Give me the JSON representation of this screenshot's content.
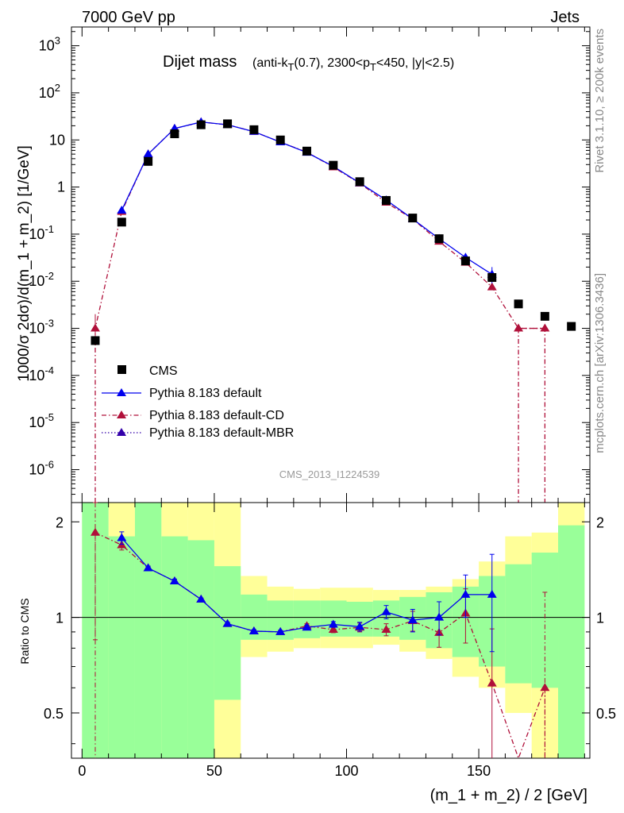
{
  "header": {
    "left": "7000 GeV pp",
    "right": "Jets"
  },
  "side_labels": {
    "rivet": "Rivet 3.1.10, ≥ 200k events",
    "mcplots": "mcplots.cern.ch [arXiv:1306.3436]"
  },
  "chart_data": [
    {
      "type": "scatter",
      "title": "Dijet mass",
      "title_detail_parts": [
        "(anti-k",
        "T",
        "(0.7), 2300<p",
        "T",
        "<450, |y|<2.5)"
      ],
      "watermark": "CMS_2013_I1224539",
      "ylabel": "1000/σ 2dσ)/d(m_1 + m_2) [1/GeV]",
      "yscale": "log",
      "ylim": [
        2e-07,
        2500
      ],
      "xlim": [
        -4,
        192
      ],
      "ytick_labels": [
        {
          "b": "10",
          "e": "-6"
        },
        {
          "b": "10",
          "e": "-5"
        },
        {
          "b": "10",
          "e": "-4"
        },
        {
          "b": "10",
          "e": "-3"
        },
        {
          "b": "10",
          "e": "-2"
        },
        {
          "b": "10",
          "e": "-1"
        },
        {
          "b": "1",
          "e": ""
        },
        {
          "b": "10",
          "e": ""
        },
        {
          "b": "10",
          "e": "2"
        },
        {
          "b": "10",
          "e": "3"
        }
      ],
      "legend_position": "lower-left",
      "legend": [
        "CMS",
        "Pythia 8.183 default",
        "Pythia 8.183 default-CD",
        "Pythia 8.183 default-MBR"
      ],
      "series": [
        {
          "name": "CMS",
          "marker": "square",
          "color": "#000000",
          "x": [
            5,
            15,
            25,
            35,
            45,
            55,
            65,
            75,
            85,
            95,
            105,
            115,
            125,
            135,
            145,
            155,
            165,
            175,
            185
          ],
          "y": [
            0.00055,
            0.18,
            3.5,
            13.5,
            21,
            22,
            16.5,
            10,
            5.8,
            2.9,
            1.3,
            0.52,
            0.22,
            0.08,
            0.027,
            0.012,
            0.0033,
            0.0018,
            0.0011
          ]
        },
        {
          "name": "Pythia 8.183 default",
          "marker": "triangle",
          "color": "#0000ee",
          "linestyle": "solid",
          "x": [
            15,
            25,
            35,
            45,
            55,
            65,
            75,
            85,
            95,
            105,
            115,
            125,
            135,
            145,
            155
          ],
          "y": [
            0.32,
            5.0,
            17.5,
            24,
            21,
            15,
            9.0,
            5.4,
            2.75,
            1.22,
            0.53,
            0.21,
            0.08,
            0.032,
            0.014
          ]
        },
        {
          "name": "Pythia 8.183 default-CD",
          "marker": "triangle",
          "color": "#b0103a",
          "linestyle": "dashdot",
          "x": [
            5,
            15,
            25,
            35,
            45,
            55,
            65,
            75,
            85,
            95,
            105,
            115,
            125,
            135,
            145,
            155,
            165,
            175
          ],
          "y": [
            0.001,
            0.3,
            5.0,
            17.5,
            24,
            21,
            15,
            9.0,
            5.5,
            2.65,
            1.2,
            0.47,
            0.21,
            0.07,
            0.025,
            0.0075,
            0.001,
            0.001
          ]
        },
        {
          "name": "Pythia 8.183 default-MBR",
          "marker": "triangle",
          "color": "#3300aa",
          "linestyle": "dotted",
          "x": [],
          "y": []
        }
      ]
    },
    {
      "type": "scatter",
      "ylabel": "Ratio to CMS",
      "xlabel": "(m_1 + m_2) / 2 [GeV]",
      "ylim": [
        0.36,
        2.3
      ],
      "xlim": [
        -4,
        192
      ],
      "xticks": [
        0,
        50,
        100,
        150
      ],
      "xtick_labels": [
        "0",
        "50",
        "100",
        "150"
      ],
      "ytick_labels": [
        "0.5",
        "1",
        "2"
      ],
      "bins": [
        0,
        10,
        20,
        30,
        40,
        50,
        60,
        70,
        80,
        90,
        100,
        110,
        120,
        130,
        140,
        150,
        160,
        170,
        180,
        190
      ],
      "band_green": [
        [
          0.2,
          2.5
        ],
        [
          0.3,
          1.8
        ],
        [
          0.2,
          2.5
        ],
        [
          0.3,
          1.8
        ],
        [
          0.35,
          1.75
        ],
        [
          0.55,
          1.45
        ],
        [
          0.85,
          1.18
        ],
        [
          0.85,
          1.13
        ],
        [
          0.86,
          1.13
        ],
        [
          0.87,
          1.13
        ],
        [
          0.87,
          1.12
        ],
        [
          0.87,
          1.13
        ],
        [
          0.85,
          1.16
        ],
        [
          0.8,
          1.2
        ],
        [
          0.75,
          1.25
        ],
        [
          0.7,
          1.35
        ],
        [
          0.62,
          1.47
        ],
        [
          0.6,
          1.6
        ],
        [
          0.2,
          1.95
        ]
      ],
      "band_yellow": [
        [
          0.2,
          2.5
        ],
        [
          0.2,
          2.5
        ],
        [
          0.2,
          2.5
        ],
        [
          0.2,
          2.5
        ],
        [
          0.2,
          2.5
        ],
        [
          0.2,
          2.5
        ],
        [
          0.75,
          1.35
        ],
        [
          0.78,
          1.25
        ],
        [
          0.8,
          1.23
        ],
        [
          0.8,
          1.24
        ],
        [
          0.8,
          1.24
        ],
        [
          0.82,
          1.22
        ],
        [
          0.78,
          1.22
        ],
        [
          0.74,
          1.25
        ],
        [
          0.65,
          1.32
        ],
        [
          0.6,
          1.5
        ],
        [
          0.5,
          1.8
        ],
        [
          0.2,
          1.85
        ],
        [
          0.2,
          2.5
        ]
      ],
      "series": [
        {
          "name": "Pythia 8.183 default",
          "color": "#0000ee",
          "linestyle": "solid",
          "x": [
            15,
            25,
            35,
            45,
            55,
            65,
            75,
            85,
            95,
            105,
            115,
            125,
            135,
            145,
            155
          ],
          "y": [
            1.78,
            1.43,
            1.3,
            1.14,
            0.955,
            0.905,
            0.9,
            0.93,
            0.95,
            0.935,
            1.04,
            0.98,
            1.0,
            1.18,
            1.18
          ],
          "err": [
            0.08,
            0.02,
            0.02,
            0.01,
            0.01,
            0.01,
            0.01,
            0.015,
            0.02,
            0.03,
            0.05,
            0.08,
            0.12,
            0.18,
            0.4
          ]
        },
        {
          "name": "Pythia 8.183 default-CD",
          "color": "#b0103a",
          "linestyle": "dashdot",
          "x": [
            5,
            15,
            25,
            35,
            45,
            55,
            65,
            75,
            85,
            95,
            105,
            115,
            125,
            135,
            145,
            155,
            165,
            175
          ],
          "y": [
            1.85,
            1.69,
            1.43,
            1.3,
            1.14,
            0.955,
            0.905,
            0.9,
            0.94,
            0.915,
            0.93,
            0.915,
            0.975,
            0.895,
            1.03,
            0.62,
            0.3,
            0.6
          ],
          "err": [
            1.0,
            0.06,
            0.02,
            0.02,
            0.01,
            0.01,
            0.01,
            0.01,
            0.015,
            0.02,
            0.03,
            0.04,
            0.07,
            0.09,
            0.2,
            0.3,
            0.0,
            0.6
          ]
        }
      ]
    }
  ]
}
